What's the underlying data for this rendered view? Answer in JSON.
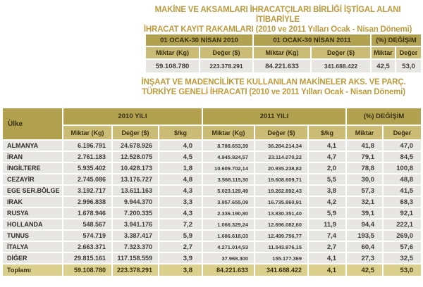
{
  "colors": {
    "title_gold": "#bd9a3c",
    "group_header_bg": "#b2a250",
    "sub_header_bg": "#cabc74",
    "row_bg": "#e8e6e3",
    "total_row_bg": "#dbcf8d"
  },
  "table1": {
    "title_line1": "MAKİNE VE AKSAMLARI İHRACATÇILARI BİRLİĞİ İŞTİGAL ALANI İTİBARİYLE",
    "title_line2": "İHRACAT KAYIT RAKAMLARI (2010 ve 2011 Yılları Ocak - Nisan Dönemi)",
    "group_headers": [
      "01 OCAK-30 NİSAN 2010",
      "01 OCAK-30 NİSAN 2011",
      "(%) DEĞİŞİM"
    ],
    "sub_headers": [
      "Miktar (Kg)",
      "Değer ($)",
      "Miktar (Kg)",
      "Değer ($)",
      "Miktar",
      "Değer"
    ],
    "values": [
      "59.108.780",
      "223.378.291",
      "84.221.633",
      "341.688.422",
      "42,5",
      "53,0"
    ]
  },
  "table2": {
    "title_line1": "İNŞAAT VE MADENCİLİKTE KULLANILAN MAKİNELER AKS. VE PARÇ.",
    "title_line2": "TÜRKİYE GENELİ İHRACATI (2010 ve 2011 Yılları Ocak - Nisan Dönemi)",
    "country_header": "Ülke",
    "group_headers": [
      "2010 YILI",
      "2011 YILI",
      "(%) DEĞİŞİM"
    ],
    "sub_headers": [
      "Miktar (Kg)",
      "Değer ($)",
      "$/kg",
      "Miktar (Kg)",
      "Değer ($)",
      "$/kg",
      "Miktar",
      "Değer"
    ],
    "rows": [
      {
        "country": "ALMANYA",
        "miktar_2010": "6.196.791",
        "deger_2010": "24.678.926",
        "kg_2010": "4,0",
        "miktar_2011": "8.788.653,39",
        "deger_2011": "36.284.214,34",
        "kg_2011": "4,1",
        "pct_miktar": "41,8",
        "pct_deger": "47,0"
      },
      {
        "country": "İRAN",
        "miktar_2010": "2.761.183",
        "deger_2010": "12.528.075",
        "kg_2010": "4,5",
        "miktar_2011": "4.945.924,57",
        "deger_2011": "23.114.070,22",
        "kg_2011": "4,7",
        "pct_miktar": "79,1",
        "pct_deger": "84,5"
      },
      {
        "country": "İNGİLTERE",
        "miktar_2010": "5.935.402",
        "deger_2010": "10.428.173",
        "kg_2010": "1,8",
        "miktar_2011": "10.609.702,14",
        "deger_2011": "20.935.238,82",
        "kg_2011": "2,0",
        "pct_miktar": "78,8",
        "pct_deger": "100,8"
      },
      {
        "country": "CEZAYİR",
        "miktar_2010": "2.745.086",
        "deger_2010": "13.176.727",
        "kg_2010": "4,8",
        "miktar_2011": "3.568.115,30",
        "deger_2011": "19.608.609,71",
        "kg_2011": "5,5",
        "pct_miktar": "30,0",
        "pct_deger": "48,8"
      },
      {
        "country": "EGE SER.BÖLGE",
        "miktar_2010": "3.192.717",
        "deger_2010": "13.611.163",
        "kg_2010": "4,3",
        "miktar_2011": "5.023.129,49",
        "deger_2011": "19.262.892,43",
        "kg_2011": "3,8",
        "pct_miktar": "57,3",
        "pct_deger": "41,5"
      },
      {
        "country": "IRAK",
        "miktar_2010": "2.996.838",
        "deger_2010": "9.944.370",
        "kg_2010": "3,3",
        "miktar_2011": "3.957.655,09",
        "deger_2011": "16.735.860,91",
        "kg_2011": "4,2",
        "pct_miktar": "32,1",
        "pct_deger": "68,3"
      },
      {
        "country": "RUSYA",
        "miktar_2010": "1.678.946",
        "deger_2010": "7.200.335",
        "kg_2010": "4,3",
        "miktar_2011": "2.336.190,80",
        "deger_2011": "13.830.351,40",
        "kg_2011": "5,9",
        "pct_miktar": "39,1",
        "pct_deger": "92,1"
      },
      {
        "country": "HOLLANDA",
        "miktar_2010": "548.567",
        "deger_2010": "3.941.176",
        "kg_2010": "7,2",
        "miktar_2011": "1.066.329,24",
        "deger_2011": "12.696.082,60",
        "kg_2011": "11,9",
        "pct_miktar": "94,4",
        "pct_deger": "222,1"
      },
      {
        "country": "TUNUS",
        "miktar_2010": "574.719",
        "deger_2010": "3.387.417",
        "kg_2010": "5,9",
        "miktar_2011": "1.686.618,03",
        "deger_2011": "12.499.756,77",
        "kg_2011": "7,4",
        "pct_miktar": "193,5",
        "pct_deger": "269,0"
      },
      {
        "country": "İTALYA",
        "miktar_2010": "2.663.371",
        "deger_2010": "7.323.370",
        "kg_2010": "2,7",
        "miktar_2011": "4.271.014,53",
        "deger_2011": "11.543.976,15",
        "kg_2011": "2,7",
        "pct_miktar": "60,4",
        "pct_deger": "57,6"
      },
      {
        "country": "DİĞER",
        "miktar_2010": "29.815.161",
        "deger_2010": "117.158.559",
        "kg_2010": "3,9",
        "miktar_2011": "37.968.300",
        "deger_2011": "155.177.369",
        "kg_2011": "4,1",
        "pct_miktar": "27,3",
        "pct_deger": "32,5"
      }
    ],
    "total_row": {
      "country": "Toplamı",
      "miktar_2010": "59.108.780",
      "deger_2010": "223.378.291",
      "kg_2010": "3,8",
      "miktar_2011": "84.221.633",
      "deger_2011": "341.688.422",
      "kg_2011": "4,1",
      "pct_miktar": "42,5",
      "pct_deger": "53,0"
    }
  }
}
